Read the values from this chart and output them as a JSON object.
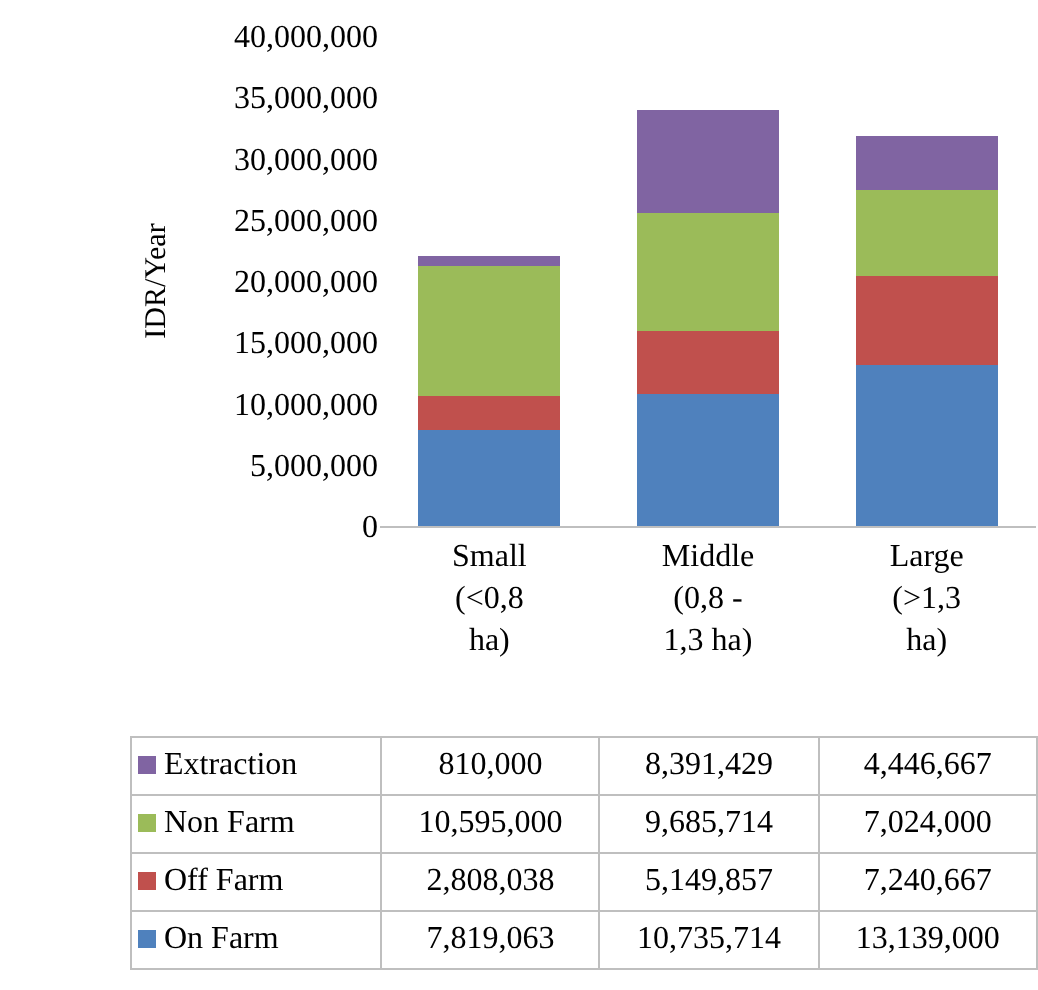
{
  "chart_data": {
    "type": "bar",
    "stacked": true,
    "ylabel": "IDR/Year",
    "categories": [
      "Small (<0,8 ha)",
      "Middle (0,8 - 1,3 ha)",
      "Large (>1,3 ha)"
    ],
    "series": [
      {
        "name": "On Farm",
        "color": "#4f81bd",
        "values": [
          7819063,
          10735714,
          13139000
        ],
        "value_labels": [
          "7,819,063",
          "10,735,714",
          "13,139,000"
        ]
      },
      {
        "name": "Off Farm",
        "color": "#c0504d",
        "values": [
          2808038,
          5149857,
          7240667
        ],
        "value_labels": [
          "2,808,038",
          "5,149,857",
          "7,240,667"
        ]
      },
      {
        "name": "Non Farm",
        "color": "#9bbb59",
        "values": [
          10595000,
          9685714,
          7024000
        ],
        "value_labels": [
          "10,595,000",
          "9,685,714",
          "7,024,000"
        ]
      },
      {
        "name": "Extraction",
        "color": "#8064a2",
        "values": [
          810000,
          8391429,
          4446667
        ],
        "value_labels": [
          "810,000",
          "8,391,429",
          "4,446,667"
        ]
      }
    ],
    "ylim": [
      0,
      40000000
    ],
    "yticks": [
      0,
      {
        "value": 5000000,
        "label": "5,000,000"
      },
      {
        "value": 10000000,
        "label": "10,000,000"
      },
      {
        "value": 15000000,
        "label": "15,000,000"
      },
      {
        "value": 20000000,
        "label": "20,000,000"
      },
      {
        "value": 25000000,
        "label": "25,000,000"
      },
      {
        "value": 30000000,
        "label": "30,000,000"
      },
      {
        "value": 35000000,
        "label": "35,000,000"
      },
      {
        "value": 40000000,
        "label": "40,000,000"
      }
    ],
    "grid": false,
    "legend": "bottom"
  }
}
